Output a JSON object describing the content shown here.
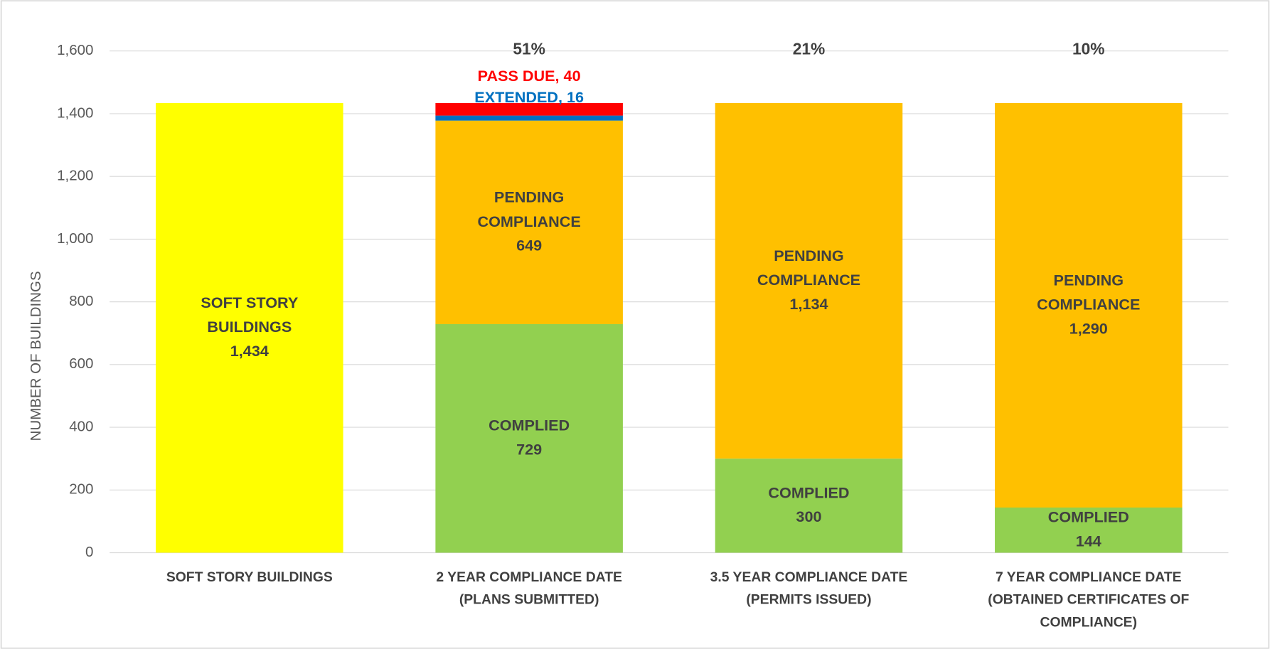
{
  "chart_data": {
    "type": "stacked_bar",
    "y_label": "NUMBER OF BUILDINGS",
    "categories": [
      "SOFT STORY BUILDINGS",
      "2 YEAR COMPLIANCE DATE\n(PLANS SUBMITTED)",
      "3.5 YEAR COMPLIANCE DATE\n(PERMITS ISSUED)",
      "7 YEAR COMPLIANCE DATE\n(OBTAINED CERTIFICATES OF\nCOMPLIANCE)"
    ],
    "series": [
      {
        "name": "SOFT STORY\nBUILDINGS",
        "color": "#ffff00",
        "values": [
          1434,
          null,
          null,
          null
        ],
        "value_labels": [
          "1,434",
          null,
          null,
          null
        ]
      },
      {
        "name": "COMPLIED",
        "color": "#92d050",
        "values": [
          null,
          729,
          300,
          144
        ]
      },
      {
        "name": "PENDING\nCOMPLIANCE",
        "color": "#ffc000",
        "values": [
          null,
          649,
          1134,
          1290
        ],
        "value_labels": [
          null,
          "649",
          "1,134",
          "1,290"
        ]
      },
      {
        "name": "EXTENDED",
        "color": "#0070c0",
        "values": [
          null,
          16,
          null,
          null
        ],
        "value_labels": [
          null,
          "EXTENDED, 16",
          null,
          null
        ]
      },
      {
        "name": "PASS DUE",
        "color": "#ff0000",
        "values": [
          null,
          40,
          null,
          null
        ],
        "value_labels": [
          null,
          "PASS DUE, 40",
          null,
          null
        ]
      }
    ],
    "annotations": [
      {
        "category": 1,
        "text": "51%"
      },
      {
        "category": 2,
        "text": "21%"
      },
      {
        "category": 3,
        "text": "10%"
      }
    ],
    "ylim": [
      0,
      1600
    ],
    "yticks": [
      0,
      {
        "value": 200,
        "label": "200"
      },
      400,
      600,
      800,
      {
        "value": 1000,
        "label": "1,000"
      },
      {
        "value": 1200,
        "label": "1,200"
      },
      {
        "value": 1400,
        "label": "1,400"
      },
      {
        "value": 1600,
        "label": "1,600"
      }
    ],
    "grid": true
  }
}
